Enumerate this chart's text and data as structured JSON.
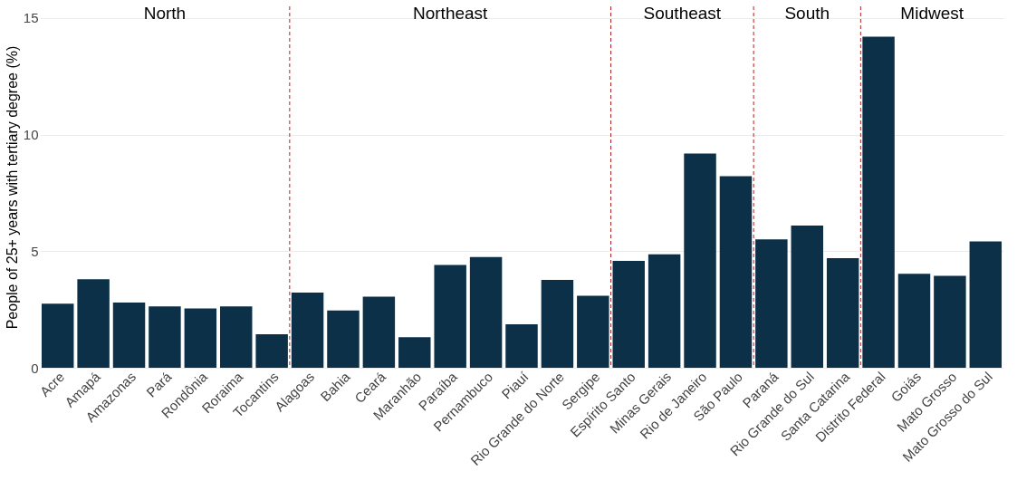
{
  "chart_data": {
    "type": "bar",
    "ylabel": "People of 25+ years with tertiary degree (%)",
    "categories": [
      "Acre",
      "Amapá",
      "Amazonas",
      "Pará",
      "Rondônia",
      "Roraima",
      "Tocantins",
      "Alagoas",
      "Bahia",
      "Ceará",
      "Maranhão",
      "Paraíba",
      "Pernambuco",
      "Piauí",
      "Rio Grande do Norte",
      "Sergipe",
      "Espírito Santo",
      "Minas Gerais",
      "Rio de Janeiro",
      "São Paulo",
      "Paraná",
      "Rio Grande do Sul",
      "Santa Catarina",
      "Distrito Federal",
      "Goiás",
      "Mato Grosso",
      "Mato Grosso do Sul"
    ],
    "values": [
      2.75,
      3.8,
      2.8,
      2.63,
      2.54,
      2.63,
      1.44,
      3.22,
      2.46,
      3.05,
      1.31,
      4.41,
      4.75,
      1.86,
      3.77,
      3.09,
      4.58,
      4.87,
      9.19,
      8.22,
      5.51,
      6.1,
      4.7,
      14.2,
      4.03,
      3.94,
      5.42
    ],
    "color": "#0b3048",
    "ylim": [
      0,
      15.5
    ],
    "yticks": [
      0,
      5,
      10,
      15
    ],
    "grid": "y",
    "annotations": [
      "North",
      "Northeast",
      "Southeast",
      "South",
      "Midwest"
    ]
  }
}
